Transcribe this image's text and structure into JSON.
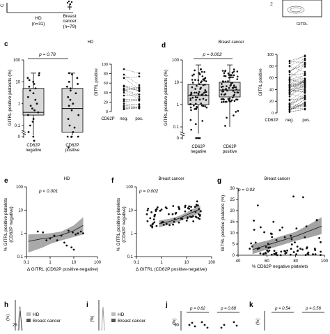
{
  "panel_labels": [
    "c",
    "d",
    "e",
    "f",
    "g",
    "h",
    "i",
    "j",
    "k"
  ],
  "top_strip": {
    "hd_label": "HD",
    "hd_n": "(n=31)",
    "bc_label": "Breast",
    "bc_label2": "cancer",
    "bc_n": "(n=79)",
    "flow_axis": "GITRL"
  },
  "panel_c": {
    "title": "HD",
    "p_text": "p = 0.78",
    "ylabel": "GITRL positive platelets (%)",
    "ticks": [
      "0",
      "0.1",
      "1",
      "10",
      "100"
    ],
    "categories": [
      "CD62P negative",
      "CD62P positive"
    ],
    "paired_ylabel": "GITRL positive",
    "paired_ticks": [
      "0",
      "20",
      "40",
      "60",
      "80",
      "100"
    ],
    "paired_x": [
      "neg.",
      "pos."
    ],
    "paired_xlabel": "CD62P"
  },
  "panel_d": {
    "title": "Breast cancer",
    "p_text": "p = 0.002",
    "ylabel": "GITRL positive platelets (%)",
    "ticks": [
      "0",
      "0.1",
      "1",
      "10",
      "100"
    ],
    "categories": [
      "CD62P negative",
      "CD62P positive"
    ],
    "paired_ylabel": "GITRL positive",
    "paired_ticks": [
      "0",
      "20",
      "40",
      "60",
      "80",
      "100"
    ],
    "paired_x": [
      "neg.",
      "pos."
    ],
    "paired_xlabel": "CD62P"
  },
  "panel_e": {
    "title": "HD",
    "p_text": "p < 0.001",
    "ylabel1": "% GITRL positive platelets",
    "ylabel2": "(CD62P negative)",
    "xlabel": "Δ GITRL (CD62P positive-negative)",
    "xticks": [
      "0.1",
      "1",
      "10",
      "100"
    ],
    "yticks": [
      "0.1",
      "1",
      "10",
      "100"
    ]
  },
  "panel_f": {
    "title": "Breast cancer",
    "p_text": "p = 0.002",
    "ylabel1": "% GITRL positive platelets",
    "ylabel2": "(CD62P negative)",
    "xlabel": "Δ GITRL (CD62P positive-negative)",
    "xticks": [
      "0.1",
      "1",
      "10",
      "100"
    ],
    "yticks": [
      "0.1",
      "1",
      "10",
      "100"
    ]
  },
  "panel_g": {
    "title": "Breast cancer",
    "p_text": "p = 0.03",
    "ylabel": "GITRL positive platelets (%)",
    "xlabel": "% CD62P negative platelets",
    "xticks": [
      "40",
      "60",
      "80",
      "100"
    ],
    "yticks": [
      "0",
      "5",
      "10",
      "15",
      "20",
      "25",
      "30"
    ]
  },
  "bottom": {
    "h_legend": [
      "HD",
      "Breast cancer"
    ],
    "h_tick": "25",
    "i_legend": [
      "HD",
      "Breast cancer"
    ],
    "j_p": [
      "p = 0.62",
      "p = 0.68"
    ],
    "j_tick": "90",
    "k_p": [
      "p = 0.54",
      "p = 0.56"
    ],
    "unit": "(%)"
  },
  "colors": {
    "box_fill": "#d9d9d9",
    "ci_fill": "#8c8c8c",
    "line": "#333333",
    "dot": "#111111"
  },
  "chart_data": [
    {
      "panel": "c",
      "type": "box",
      "yscale": "log",
      "categories": [
        "CD62P negative",
        "CD62P positive"
      ],
      "series": [
        {
          "values": [
            0,
            0.02,
            0.05,
            0.1,
            0.15,
            0.2,
            0.3,
            0.4,
            0.5,
            0.6,
            0.8,
            1,
            1.5,
            2,
            3,
            4,
            5,
            6,
            8,
            10,
            12,
            15,
            20,
            25
          ]
        },
        {
          "values": [
            0,
            0,
            0,
            0.01,
            0.03,
            0.05,
            0.08,
            0.1,
            0.2,
            0.3,
            0.5,
            0.8,
            1,
            1.5,
            2,
            3,
            4,
            5,
            6,
            8,
            10,
            15,
            22,
            25
          ]
        }
      ],
      "box": [
        {
          "q1": 0.3,
          "median": 0.4,
          "q3": 5,
          "min": 0,
          "max": 25
        },
        {
          "q1": 0.05,
          "median": 0.6,
          "q3": 5,
          "min": 0,
          "max": 25
        }
      ]
    },
    {
      "panel": "d",
      "type": "box",
      "yscale": "log",
      "categories": [
        "CD62P negative",
        "CD62P positive"
      ],
      "box": [
        {
          "q1": 1,
          "median": 2.5,
          "q3": 8,
          "min": 0,
          "max": 60
        },
        {
          "q1": 2.2,
          "median": 4.5,
          "q3": 10,
          "min": 0.1,
          "max": 60
        }
      ]
    },
    {
      "panel": "e",
      "type": "scatter",
      "xscale": "log",
      "yscale": "log",
      "points": [
        [
          0.7,
          0.5
        ],
        [
          1,
          0.6
        ],
        [
          1.5,
          0.8
        ],
        [
          2,
          0.5
        ],
        [
          3,
          0.8
        ],
        [
          4,
          0.4
        ],
        [
          5,
          0.3
        ],
        [
          8,
          0.25
        ],
        [
          10,
          0.2
        ],
        [
          15,
          1
        ],
        [
          20,
          1.2
        ],
        [
          25,
          1
        ],
        [
          12,
          0.9
        ],
        [
          0.5,
          1.1
        ],
        [
          0.3,
          1.2
        ],
        [
          6,
          1.3
        ],
        [
          9,
          1.1
        ]
      ]
    },
    {
      "panel": "f",
      "type": "scatter",
      "xscale": "log",
      "yscale": "log"
    },
    {
      "panel": "g",
      "type": "scatter",
      "xlim": [
        40,
        100
      ],
      "ylim": [
        0,
        30
      ]
    }
  ]
}
